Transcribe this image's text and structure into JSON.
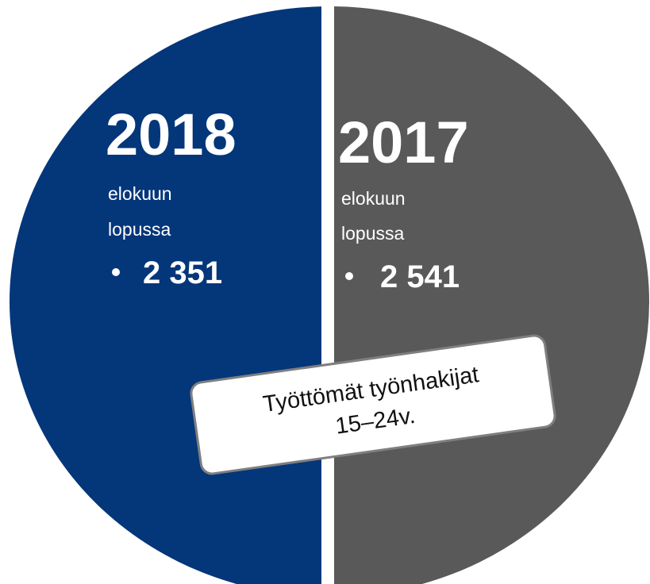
{
  "left": {
    "year": "2018",
    "line1": "elokuun",
    "line2": "lopussa",
    "value": "2 351"
  },
  "right": {
    "year": "2017",
    "line1": "elokuun",
    "line2": "lopussa",
    "value": "2 541"
  },
  "label": {
    "line1": "Työttömät työnhakijat",
    "line2": "15–24v."
  }
}
